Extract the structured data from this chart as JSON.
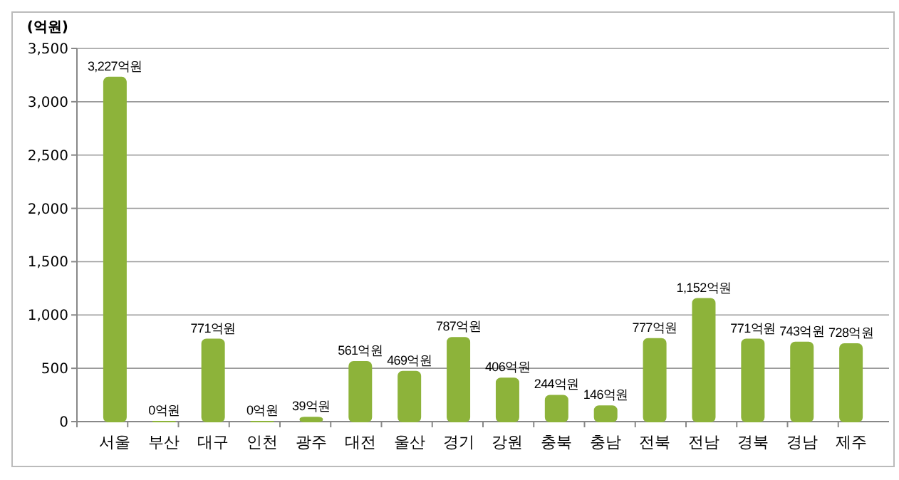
{
  "chart_data": {
    "type": "bar",
    "ylabel": "(억원)",
    "categories": [
      "서울",
      "부산",
      "대구",
      "인천",
      "광주",
      "대전",
      "울산",
      "경기",
      "강원",
      "충북",
      "충남",
      "전북",
      "전남",
      "경북",
      "경남",
      "제주"
    ],
    "values": [
      3227,
      0,
      771,
      0,
      39,
      561,
      469,
      787,
      406,
      244,
      146,
      777,
      1152,
      771,
      743,
      728
    ],
    "value_labels": [
      "3,227억원",
      "0억원",
      "771억원",
      "0억원",
      "39억원",
      "561억원",
      "469억원",
      "787억원",
      "406억원",
      "244억원",
      "146억원",
      "777억원",
      "1,152억원",
      "771억원",
      "743억원",
      "728억원"
    ],
    "color": "#8db33a",
    "ylim": [
      0,
      3500
    ],
    "yticks": [
      {
        "value": 0,
        "label": "0"
      },
      {
        "value": 500,
        "label": "500"
      },
      {
        "value": 1000,
        "label": "1,000"
      },
      {
        "value": 1500,
        "label": "1,500"
      },
      {
        "value": 2000,
        "label": "2,000"
      },
      {
        "value": 2500,
        "label": "2,500"
      },
      {
        "value": 3000,
        "label": "3,000"
      },
      {
        "value": 3500,
        "label": "3,500"
      }
    ],
    "grid": "y"
  }
}
